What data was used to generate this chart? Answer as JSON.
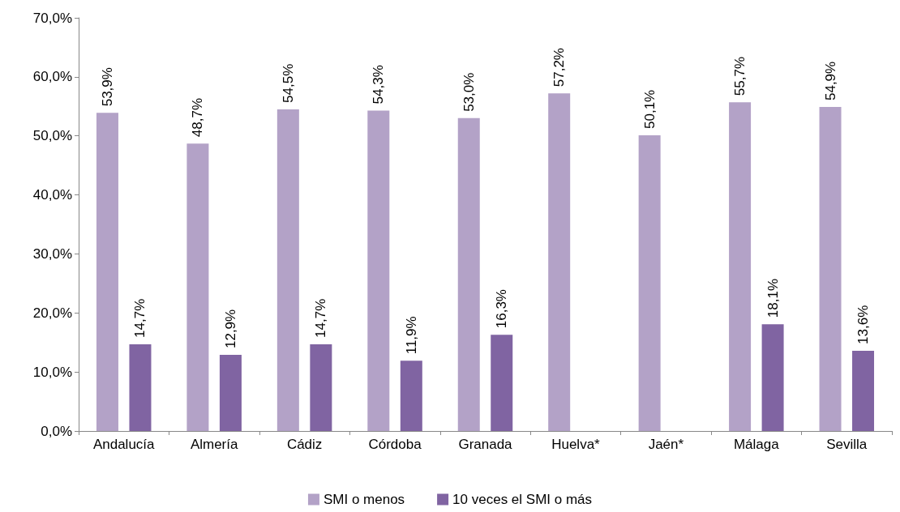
{
  "chart_data": {
    "type": "bar",
    "categories": [
      "Andalucía",
      "Almería",
      "Cádiz",
      "Córdoba",
      "Granada",
      "Huelva*",
      "Jaén*",
      "Málaga",
      "Sevilla"
    ],
    "series": [
      {
        "name": "SMI o menos",
        "color": "#b3a2c7",
        "values": [
          53.9,
          48.7,
          54.5,
          54.3,
          53.0,
          57.2,
          50.1,
          55.7,
          54.9
        ],
        "value_labels": [
          "53,9%",
          "48,7%",
          "54,5%",
          "54,3%",
          "53,0%",
          "57,2%",
          "50,1%",
          "55,7%",
          "54,9%"
        ]
      },
      {
        "name": "10 veces el SMI o más",
        "color": "#8064a2",
        "values": [
          14.7,
          12.9,
          14.7,
          11.9,
          16.3,
          null,
          null,
          18.1,
          13.6
        ],
        "value_labels": [
          "14,7%",
          "12,9%",
          "14,7%",
          "11,9%",
          "16,3%",
          null,
          null,
          "18,1%",
          "13,6%"
        ]
      }
    ],
    "ylim": [
      0,
      70
    ],
    "yticks": [
      {
        "value": 0,
        "label": "0,0%"
      },
      {
        "value": 10,
        "label": "10,0%"
      },
      {
        "value": 20,
        "label": "20,0%"
      },
      {
        "value": 30,
        "label": "30,0%"
      },
      {
        "value": 40,
        "label": "40,0%"
      },
      {
        "value": 50,
        "label": "50,0%"
      },
      {
        "value": 60,
        "label": "60,0%"
      },
      {
        "value": 70,
        "label": "70,0%"
      }
    ],
    "grid": false,
    "legend": "bottom"
  }
}
